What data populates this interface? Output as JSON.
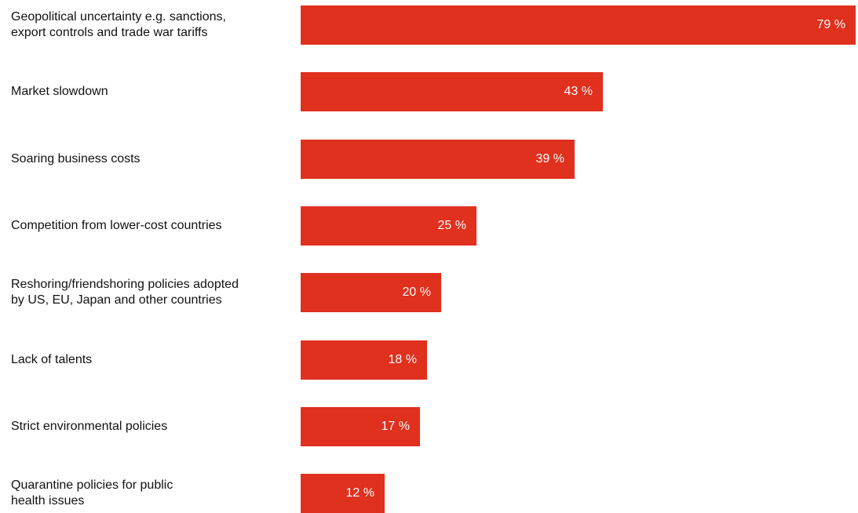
{
  "chart_data": {
    "type": "bar",
    "orientation": "horizontal",
    "categories": [
      "Geopolitical uncertainty e.g. sanctions,\nexport controls and trade war tariffs",
      "Market slowdown",
      "Soaring business costs",
      "Competition from lower-cost countries",
      "Reshoring/friendshoring policies adopted\nby US, EU, Japan and other countries",
      "Lack of talents",
      "Strict environmental policies",
      "Quarantine policies for public\nhealth issues"
    ],
    "values": [
      79,
      43,
      39,
      25,
      20,
      18,
      17,
      12
    ],
    "data_labels": [
      "79 %",
      "43 %",
      "39 %",
      "25 %",
      "20 %",
      "18 %",
      "17 %",
      "12 %"
    ],
    "xlim": [
      0,
      79
    ],
    "grid": false,
    "legend": "none",
    "bar_color": "#e0301e",
    "label_color": "#ffffff"
  }
}
